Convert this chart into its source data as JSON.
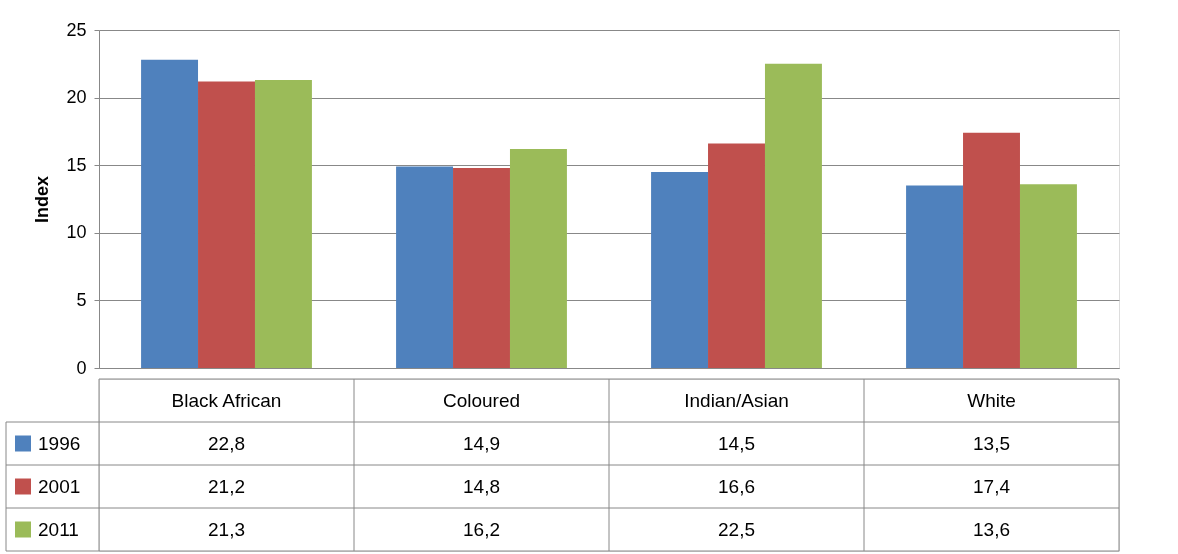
{
  "chart_data": {
    "type": "bar",
    "ylabel": "Index",
    "categories": [
      "Black African",
      "Coloured",
      "Indian/Asian",
      "White"
    ],
    "series": [
      {
        "name": "1996",
        "color": "#4f81bd",
        "values": [
          22.8,
          14.9,
          14.5,
          13.5
        ],
        "value_labels": [
          "22,8",
          "14,9",
          "14,5",
          "13,5"
        ]
      },
      {
        "name": "2001",
        "color": "#c0504d",
        "values": [
          21.2,
          14.8,
          16.6,
          17.4
        ],
        "value_labels": [
          "21,2",
          "14,8",
          "16,6",
          "17,4"
        ]
      },
      {
        "name": "2011",
        "color": "#9bbb59",
        "values": [
          21.3,
          16.2,
          22.5,
          13.6
        ],
        "value_labels": [
          "21,3",
          "16,2",
          "22,5",
          "13,6"
        ]
      }
    ],
    "ylim": [
      0,
      25
    ],
    "yticks": [
      0,
      5,
      10,
      15,
      20,
      25
    ],
    "grid": "y",
    "legend": "bottom"
  }
}
